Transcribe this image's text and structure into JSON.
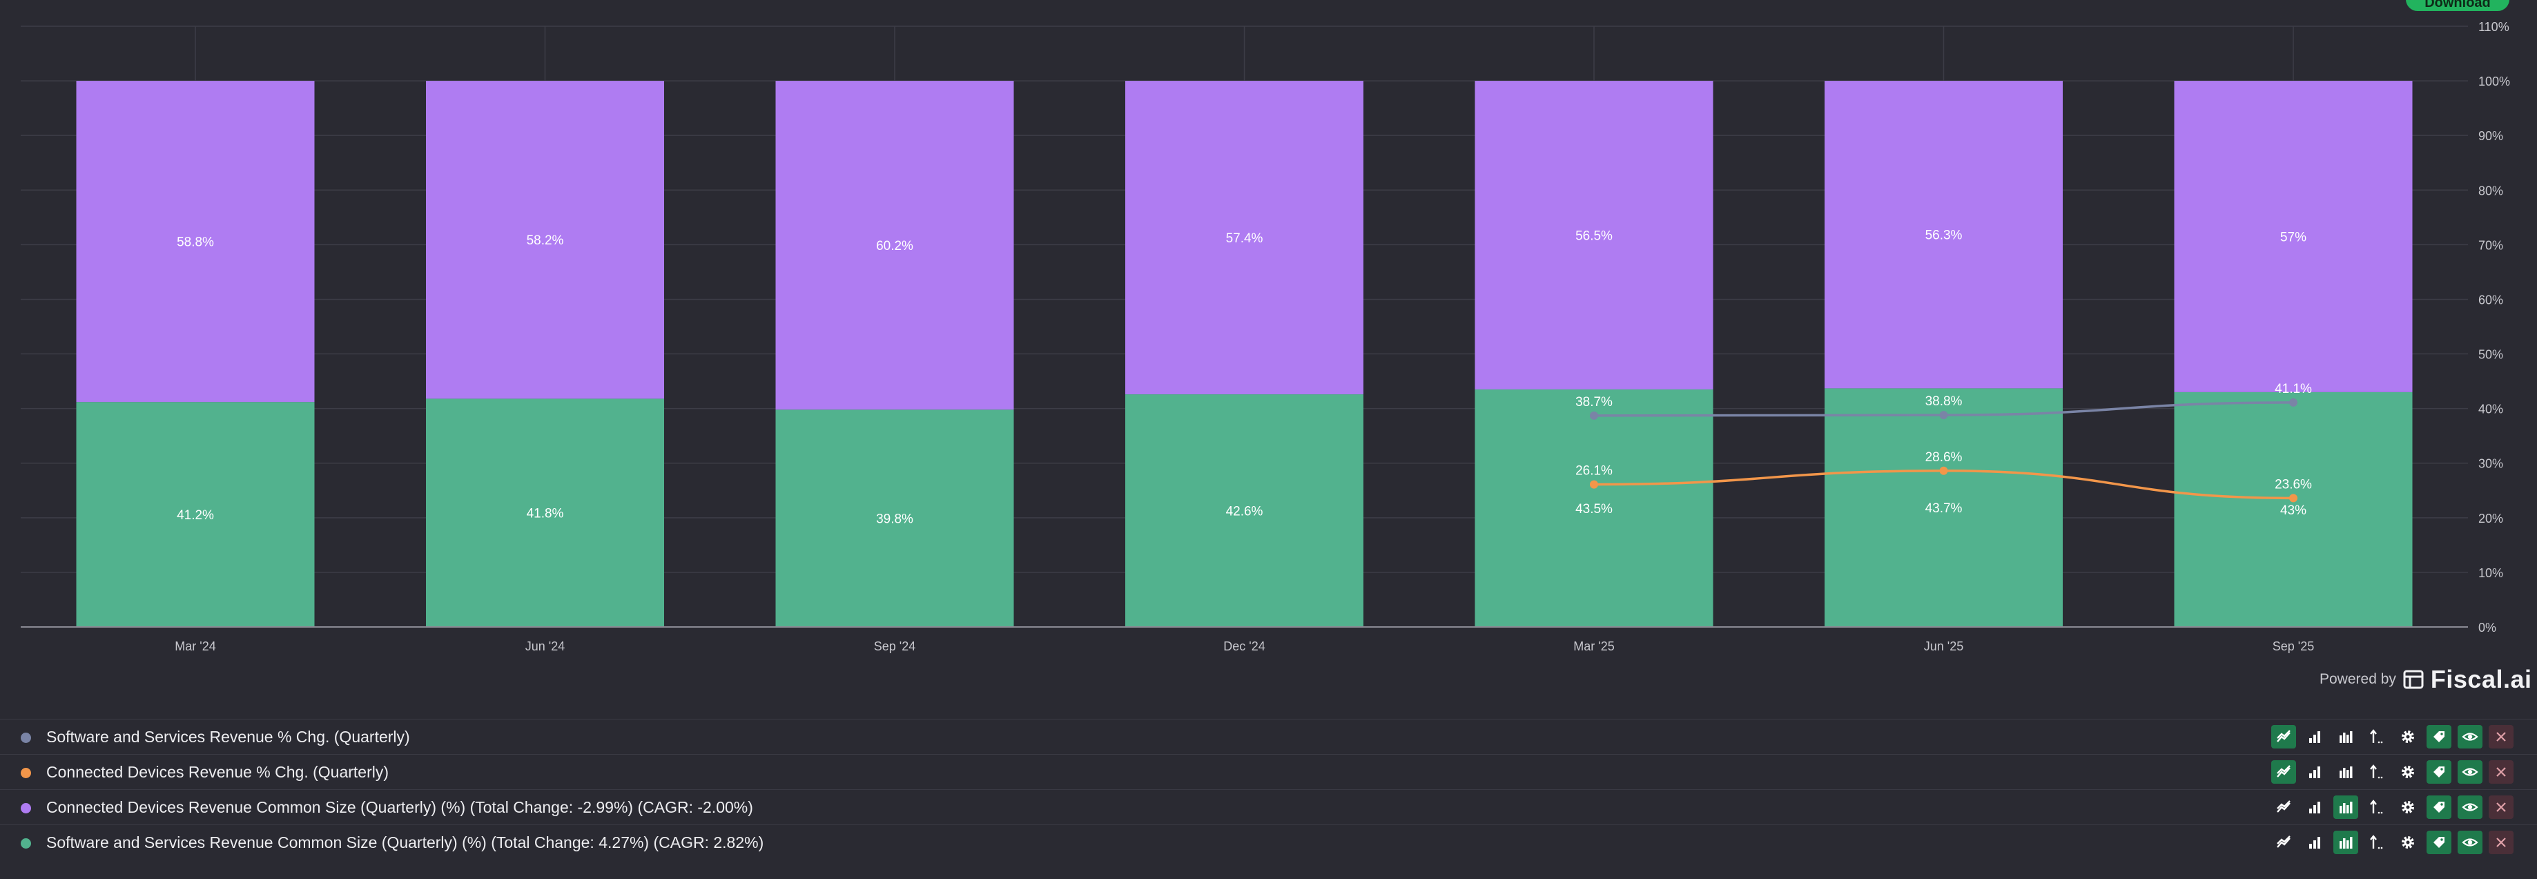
{
  "download_label": "Download",
  "powered_by": "Powered by",
  "brand": "Fiscal.ai",
  "colors": {
    "background": "#2a2a32",
    "software_bar": "#52b28e",
    "devices_bar": "#af7cf2",
    "software_line": "#7a84a6",
    "devices_line": "#f2964a",
    "grid": "#3d3d47",
    "tool_active": "#1f7a4c"
  },
  "chart_data": {
    "type": "bar",
    "stacked": true,
    "categories": [
      "Mar '24",
      "Jun '24",
      "Sep '24",
      "Dec '24",
      "Mar '25",
      "Jun '25",
      "Sep '25"
    ],
    "ylim": [
      0,
      110
    ],
    "yticks": [
      "0%",
      "10%",
      "20%",
      "30%",
      "40%",
      "50%",
      "60%",
      "70%",
      "80%",
      "90%",
      "100%",
      "110%"
    ],
    "grid": true,
    "series": [
      {
        "name": "Software and Services Revenue Common Size (Quarterly) (%) (Total Change: 4.27%) (CAGR: 2.82%)",
        "kind": "bar",
        "values": [
          41.2,
          41.8,
          39.8,
          42.6,
          43.5,
          43.7,
          43
        ],
        "labels": [
          "41.2%",
          "41.8%",
          "39.8%",
          "42.6%",
          "43.5%",
          "43.7%",
          "43%"
        ]
      },
      {
        "name": "Connected Devices Revenue Common Size (Quarterly) (%) (Total Change: -2.99%) (CAGR: -2.00%)",
        "kind": "bar",
        "values": [
          58.8,
          58.2,
          60.2,
          57.4,
          56.5,
          56.3,
          57
        ],
        "labels": [
          "58.8%",
          "58.2%",
          "60.2%",
          "57.4%",
          "56.5%",
          "56.3%",
          "57%"
        ]
      },
      {
        "name": "Software and Services Revenue % Chg. (Quarterly)",
        "kind": "line",
        "values": [
          null,
          null,
          null,
          null,
          38.7,
          38.8,
          41.1
        ],
        "labels": [
          "",
          "",
          "",
          "",
          "38.7%",
          "38.8%",
          "41.1%"
        ]
      },
      {
        "name": "Connected Devices Revenue % Chg. (Quarterly)",
        "kind": "line",
        "values": [
          null,
          null,
          null,
          null,
          26.1,
          28.6,
          23.6
        ],
        "labels": [
          "",
          "",
          "",
          "",
          "26.1%",
          "28.6%",
          "23.6%"
        ]
      }
    ]
  },
  "legend": [
    {
      "name": "Software and Services Revenue % Chg. (Quarterly)",
      "color": "#7a84a6",
      "mode": "line"
    },
    {
      "name": "Connected Devices Revenue % Chg. (Quarterly)",
      "color": "#f2964a",
      "mode": "line"
    },
    {
      "name": "Connected Devices Revenue Common Size (Quarterly) (%) (Total Change: -2.99%) (CAGR: -2.00%)",
      "color": "#af7cf2",
      "mode": "bar"
    },
    {
      "name": "Software and Services Revenue Common Size (Quarterly) (%) (Total Change: 4.27%) (CAGR: 2.82%)",
      "color": "#52b28e",
      "mode": "bar"
    }
  ],
  "tool_icons": [
    "line-chart-icon",
    "bar-chart-icon",
    "grouped-bar-icon",
    "sort-icon",
    "gear-icon",
    "tag-icon",
    "eye-icon",
    "close-icon"
  ]
}
